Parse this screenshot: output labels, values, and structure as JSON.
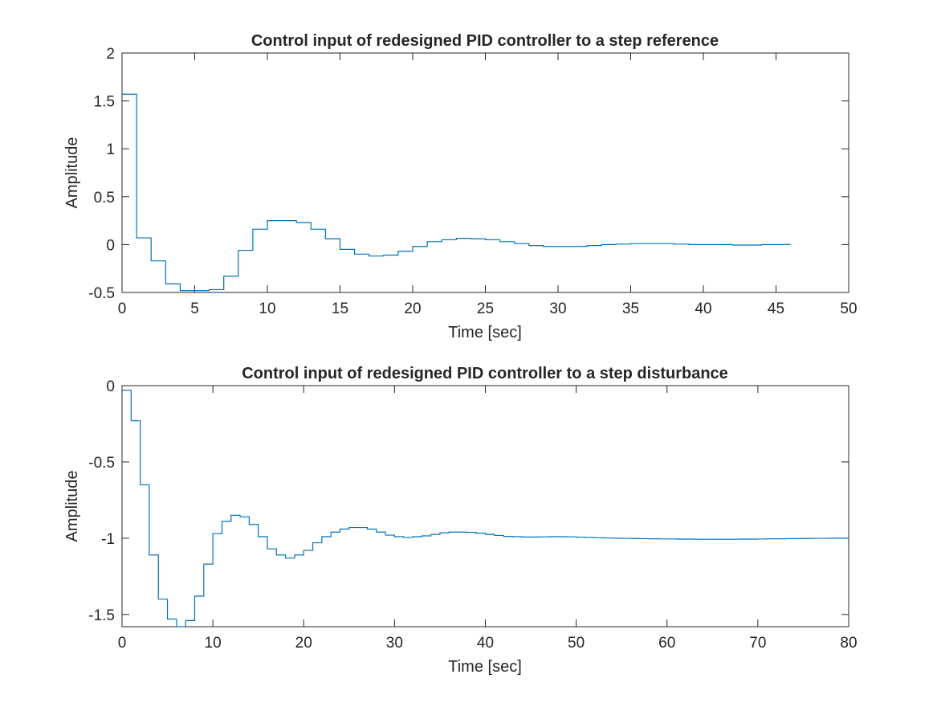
{
  "chart_data": [
    {
      "type": "line",
      "style": "stairs",
      "title": "Control input of redesigned PID controller to a step reference",
      "xlabel": "Time [sec]",
      "ylabel": "Amplitude",
      "xlim": [
        0,
        50
      ],
      "ylim": [
        -0.5,
        2
      ],
      "xticks": [
        0,
        5,
        10,
        15,
        20,
        25,
        30,
        35,
        40,
        45,
        50
      ],
      "yticks": [
        -0.5,
        0,
        0.5,
        1,
        1.5,
        2
      ],
      "xtick_labels": [
        "0",
        "5",
        "10",
        "15",
        "20",
        "25",
        "30",
        "35",
        "40",
        "45",
        "50"
      ],
      "ytick_labels": [
        "-0.5",
        "0",
        "0.5",
        "1",
        "1.5",
        "2"
      ],
      "grid": false,
      "line_color": "#0072BD",
      "series": [
        {
          "x": [
            0,
            1,
            2,
            3,
            4,
            5,
            6,
            7,
            8,
            9,
            10,
            11,
            12,
            13,
            14,
            15,
            16,
            17,
            18,
            19,
            20,
            21,
            22,
            23,
            24,
            25,
            26,
            27,
            28,
            29,
            30,
            31,
            32,
            33,
            34,
            35,
            36,
            37,
            38,
            39,
            40,
            41,
            42,
            43,
            44,
            45,
            46
          ],
          "y": [
            1.57,
            0.07,
            -0.17,
            -0.41,
            -0.48,
            -0.48,
            -0.47,
            -0.33,
            -0.06,
            0.16,
            0.25,
            0.25,
            0.23,
            0.16,
            0.06,
            -0.05,
            -0.1,
            -0.12,
            -0.11,
            -0.07,
            -0.02,
            0.03,
            0.05,
            0.065,
            0.06,
            0.05,
            0.03,
            0.01,
            -0.01,
            -0.02,
            -0.02,
            -0.02,
            -0.01,
            0,
            0.005,
            0.01,
            0.01,
            0.01,
            0.005,
            0,
            0,
            0,
            -0.005,
            -0.005,
            0,
            0,
            0
          ]
        }
      ]
    },
    {
      "type": "line",
      "style": "stairs",
      "title": "Control input of redesigned PID controller to a step disturbance",
      "xlabel": "Time [sec]",
      "ylabel": "Amplitude",
      "xlim": [
        0,
        80
      ],
      "ylim": [
        -1.58,
        0
      ],
      "xticks": [
        0,
        10,
        20,
        30,
        40,
        50,
        60,
        70,
        80
      ],
      "yticks": [
        -1.5,
        -1,
        -0.5,
        0
      ],
      "xtick_labels": [
        "0",
        "10",
        "20",
        "30",
        "40",
        "50",
        "60",
        "70",
        "80"
      ],
      "ytick_labels": [
        "-1.5",
        "-1",
        "-0.5",
        "0"
      ],
      "grid": false,
      "line_color": "#0072BD",
      "series": [
        {
          "x": [
            0,
            1,
            2,
            3,
            4,
            5,
            6,
            7,
            8,
            9,
            10,
            11,
            12,
            13,
            14,
            15,
            16,
            17,
            18,
            19,
            20,
            21,
            22,
            23,
            24,
            25,
            26,
            27,
            28,
            29,
            30,
            31,
            32,
            33,
            34,
            35,
            36,
            37,
            38,
            39,
            40,
            41,
            42,
            43,
            44,
            45,
            46,
            47,
            48,
            49,
            50,
            51,
            52,
            53,
            54,
            55,
            56,
            57,
            58,
            59,
            60,
            61,
            62,
            63,
            64,
            65,
            66,
            67,
            68,
            69,
            70,
            71,
            72,
            73,
            74,
            75,
            76,
            77,
            78,
            79,
            80
          ],
          "y": [
            -0.03,
            -0.23,
            -0.65,
            -1.11,
            -1.4,
            -1.53,
            -1.6,
            -1.54,
            -1.38,
            -1.17,
            -0.97,
            -0.89,
            -0.85,
            -0.86,
            -0.91,
            -0.99,
            -1.07,
            -1.11,
            -1.13,
            -1.11,
            -1.08,
            -1.03,
            -0.99,
            -0.96,
            -0.94,
            -0.93,
            -0.93,
            -0.94,
            -0.96,
            -0.98,
            -0.99,
            -0.995,
            -0.99,
            -0.985,
            -0.975,
            -0.965,
            -0.96,
            -0.96,
            -0.962,
            -0.967,
            -0.975,
            -0.982,
            -0.988,
            -0.99,
            -0.992,
            -0.992,
            -0.991,
            -0.99,
            -0.99,
            -0.991,
            -0.993,
            -0.995,
            -0.997,
            -0.999,
            -1,
            -1.001,
            -1.002,
            -1.003,
            -1.004,
            -1.005,
            -1.005,
            -1.006,
            -1.006,
            -1.007,
            -1.007,
            -1.007,
            -1.007,
            -1.007,
            -1.006,
            -1.006,
            -1.005,
            -1.004,
            -1.004,
            -1.003,
            -1.002,
            -1.002,
            -1.001,
            -1.001,
            -1,
            -1,
            -1
          ]
        }
      ]
    }
  ]
}
